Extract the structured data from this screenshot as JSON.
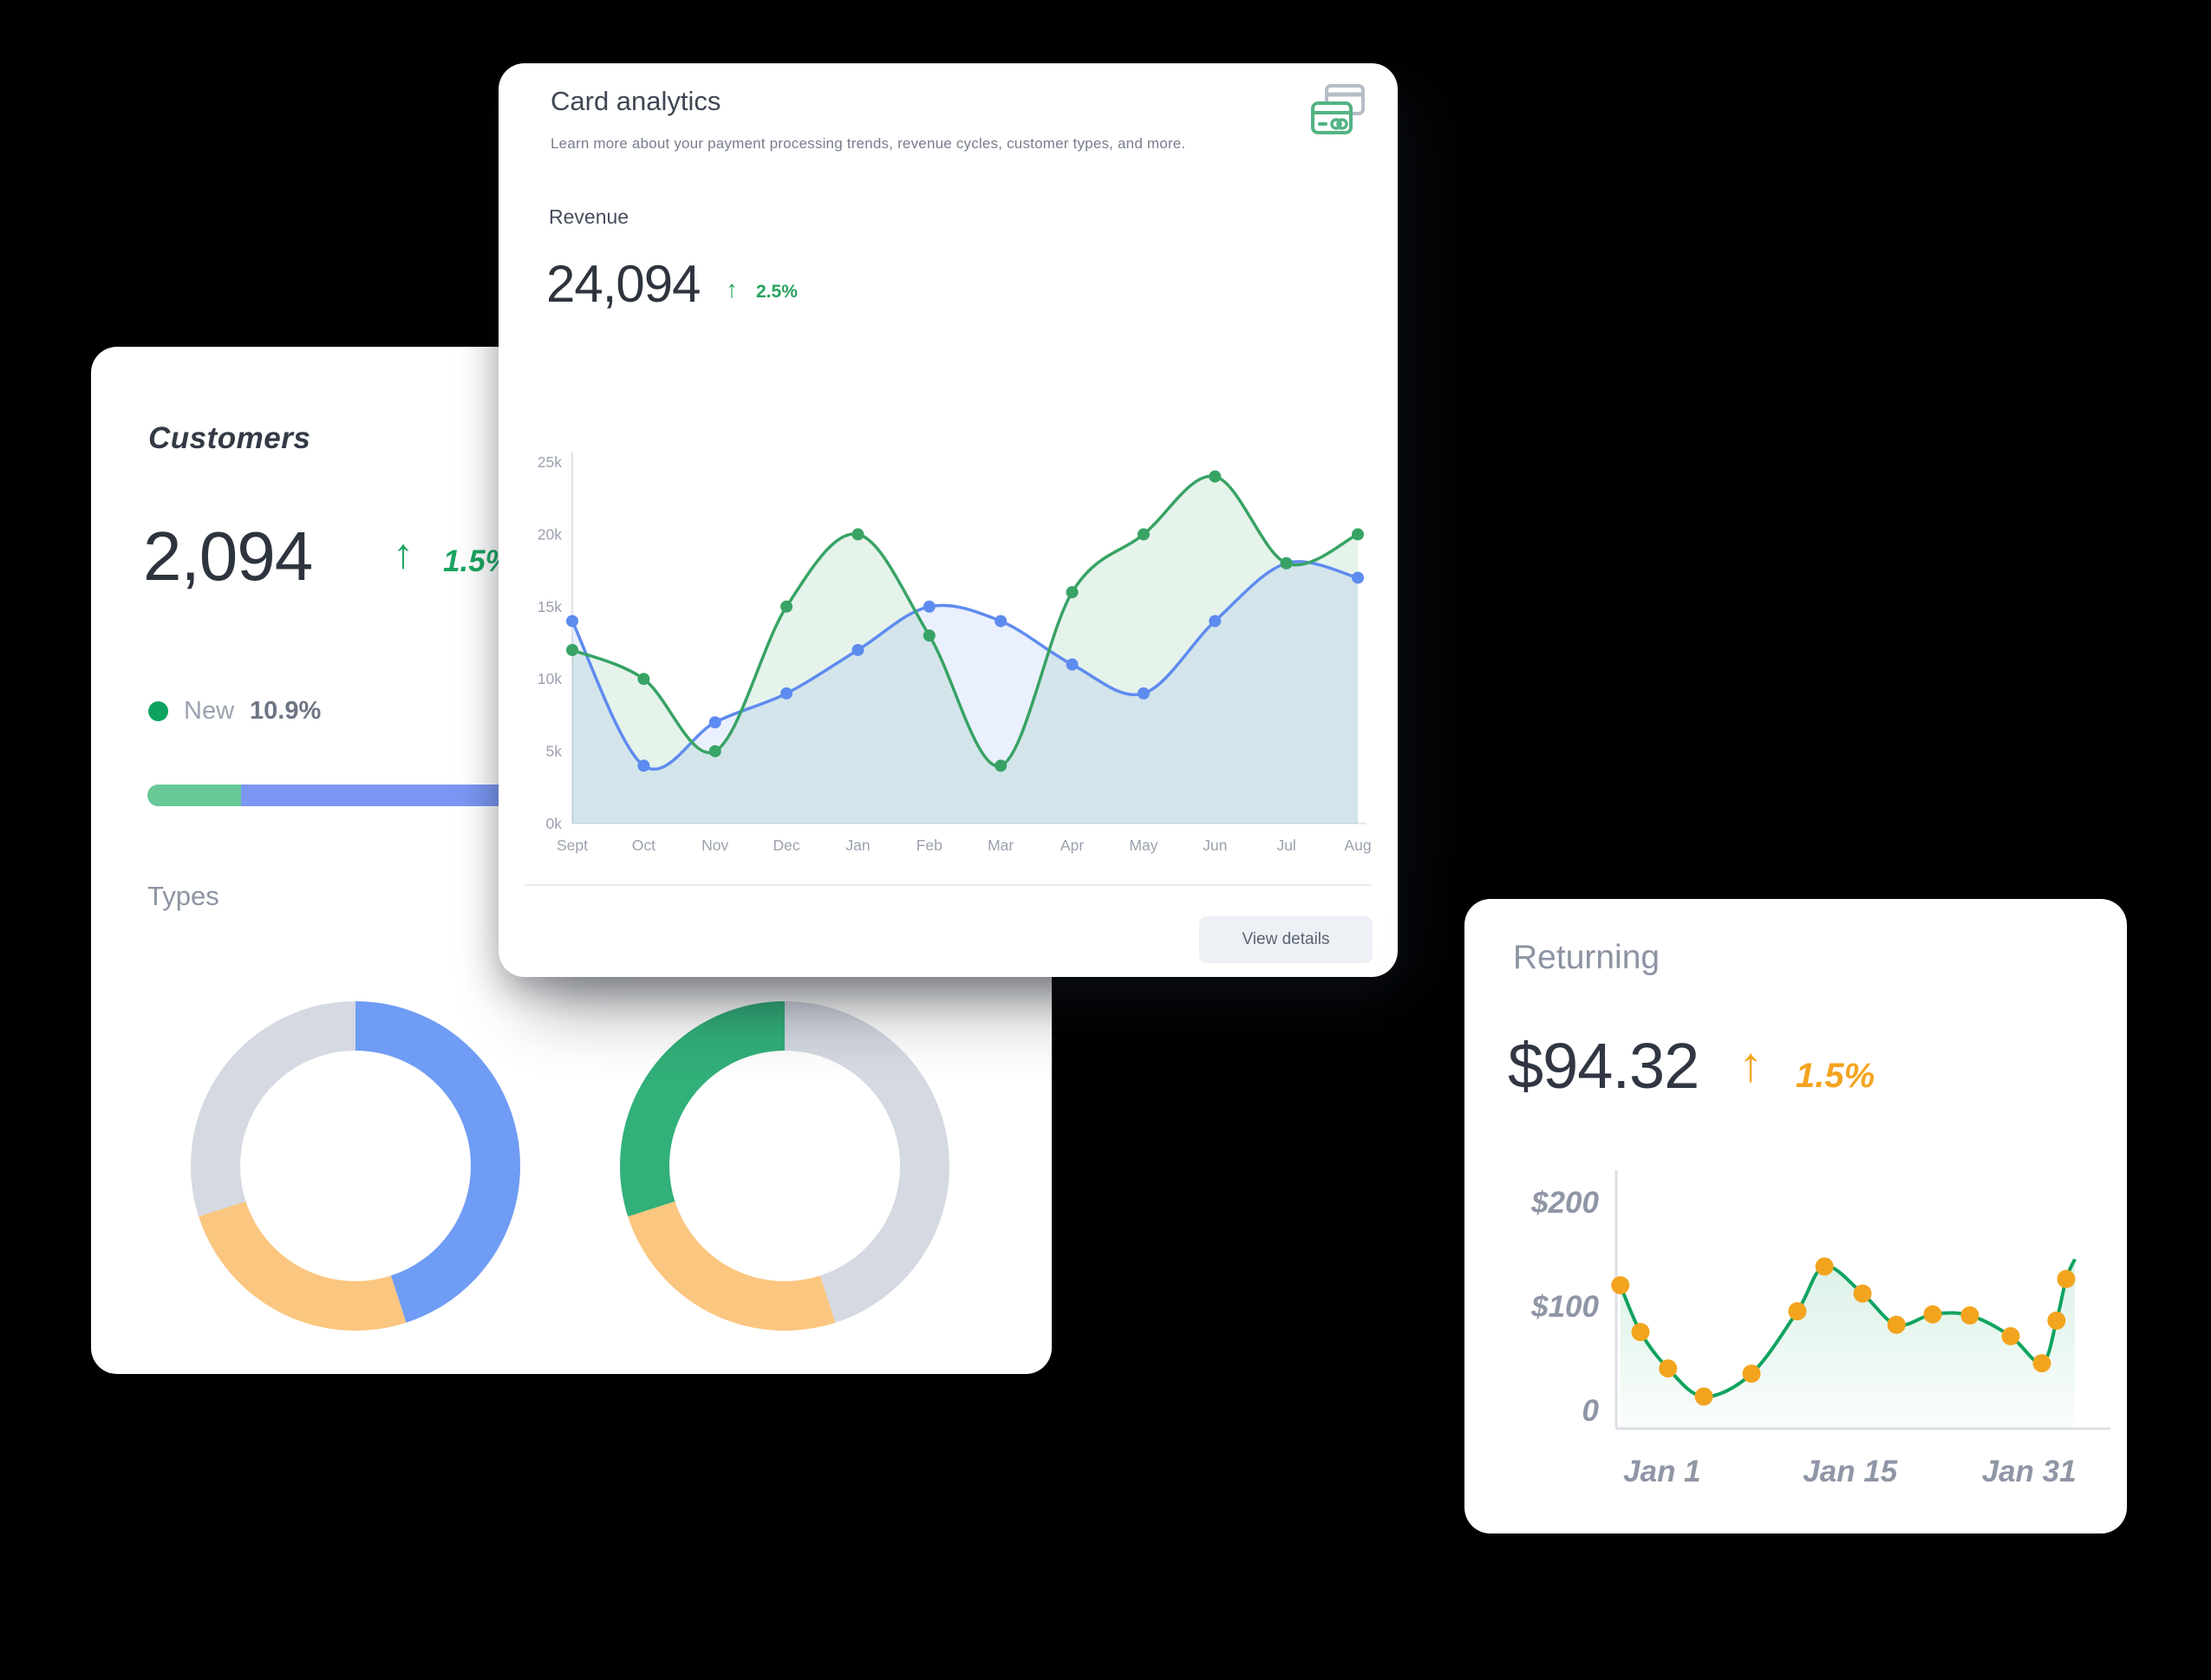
{
  "icons": {
    "up_arrow": "↑"
  },
  "customers_card": {
    "title": "Customers",
    "value": "2,094",
    "delta": "1.5%",
    "legend": {
      "label": "New",
      "value": "10.9%"
    },
    "progress": {
      "green_pct": 10.9,
      "green_color": "#68c997",
      "blue_color": "#7b97f3"
    },
    "types_label": "Types"
  },
  "analytics_card": {
    "title": "Card analytics",
    "subtitle": "Learn more about your payment processing trends, revenue cycles, customer types, and more.",
    "metric_label": "Revenue",
    "metric_value": "24,094",
    "delta": "2.5%",
    "button_label": "View details"
  },
  "returning_card": {
    "title": "Returning",
    "value": "$94.32",
    "delta": "1.5%"
  },
  "chart_data": [
    {
      "id": "revenue",
      "type": "area",
      "title": "Revenue",
      "categories": [
        "Sept",
        "Oct",
        "Nov",
        "Dec",
        "Jan",
        "Feb",
        "Mar",
        "Apr",
        "May",
        "Jun",
        "Jul",
        "Aug"
      ],
      "series": [
        {
          "name": "green-series",
          "color": "#38a365",
          "fill": "rgba(56,163,101,0.13)",
          "values": [
            12,
            10,
            5,
            15,
            20,
            13,
            4,
            16,
            20,
            24,
            18,
            20
          ]
        },
        {
          "name": "blue-series",
          "color": "#5e8bef",
          "fill": "rgba(94,139,239,0.13)",
          "values": [
            14,
            4,
            7,
            9,
            12,
            15,
            14,
            11,
            9,
            14,
            18,
            17
          ]
        }
      ],
      "ylim": [
        0,
        25
      ],
      "ytick_step": 5,
      "yticks": [
        "0k",
        "5k",
        "10k",
        "15k",
        "20k",
        "25k"
      ],
      "legend_position": "none",
      "grid": false
    },
    {
      "id": "types-left",
      "type": "pie",
      "segments": [
        {
          "name": "blue",
          "value": 45,
          "color": "#6f9cf4"
        },
        {
          "name": "orange",
          "value": 25,
          "color": "#fbc67f"
        },
        {
          "name": "gray",
          "value": 30,
          "color": "#d5d9e1"
        }
      ]
    },
    {
      "id": "types-right",
      "type": "pie",
      "segments": [
        {
          "name": "gray",
          "value": 45,
          "color": "#d5d9e1"
        },
        {
          "name": "orange",
          "value": 25,
          "color": "#fbc67f"
        },
        {
          "name": "green",
          "value": 30,
          "color": "#32b07a"
        }
      ]
    },
    {
      "id": "returning",
      "type": "line",
      "line_color": "#10a35f",
      "dot_color": "#f3a41f",
      "points": [
        [
          0.009,
          127
        ],
        [
          0.053,
          82
        ],
        [
          0.113,
          47
        ],
        [
          0.191,
          20
        ],
        [
          0.295,
          42
        ],
        [
          0.395,
          102
        ],
        [
          0.454,
          145
        ],
        [
          0.537,
          119
        ],
        [
          0.611,
          89
        ],
        [
          0.69,
          99
        ],
        [
          0.771,
          98
        ],
        [
          0.86,
          78
        ],
        [
          0.928,
          52
        ],
        [
          0.96,
          93
        ],
        [
          0.981,
          133
        ]
      ],
      "end_point": [
        1.0,
        152
      ],
      "ylim": [
        0,
        200
      ],
      "ytick_step": 100,
      "yticks": [
        "0",
        "$100",
        "$200"
      ],
      "xticks": [
        {
          "label": "Jan 1",
          "pos": 0.1
        },
        {
          "label": "Jan 15",
          "pos": 0.51
        },
        {
          "label": "Jan 31",
          "pos": 0.9
        }
      ],
      "grid": false
    }
  ]
}
